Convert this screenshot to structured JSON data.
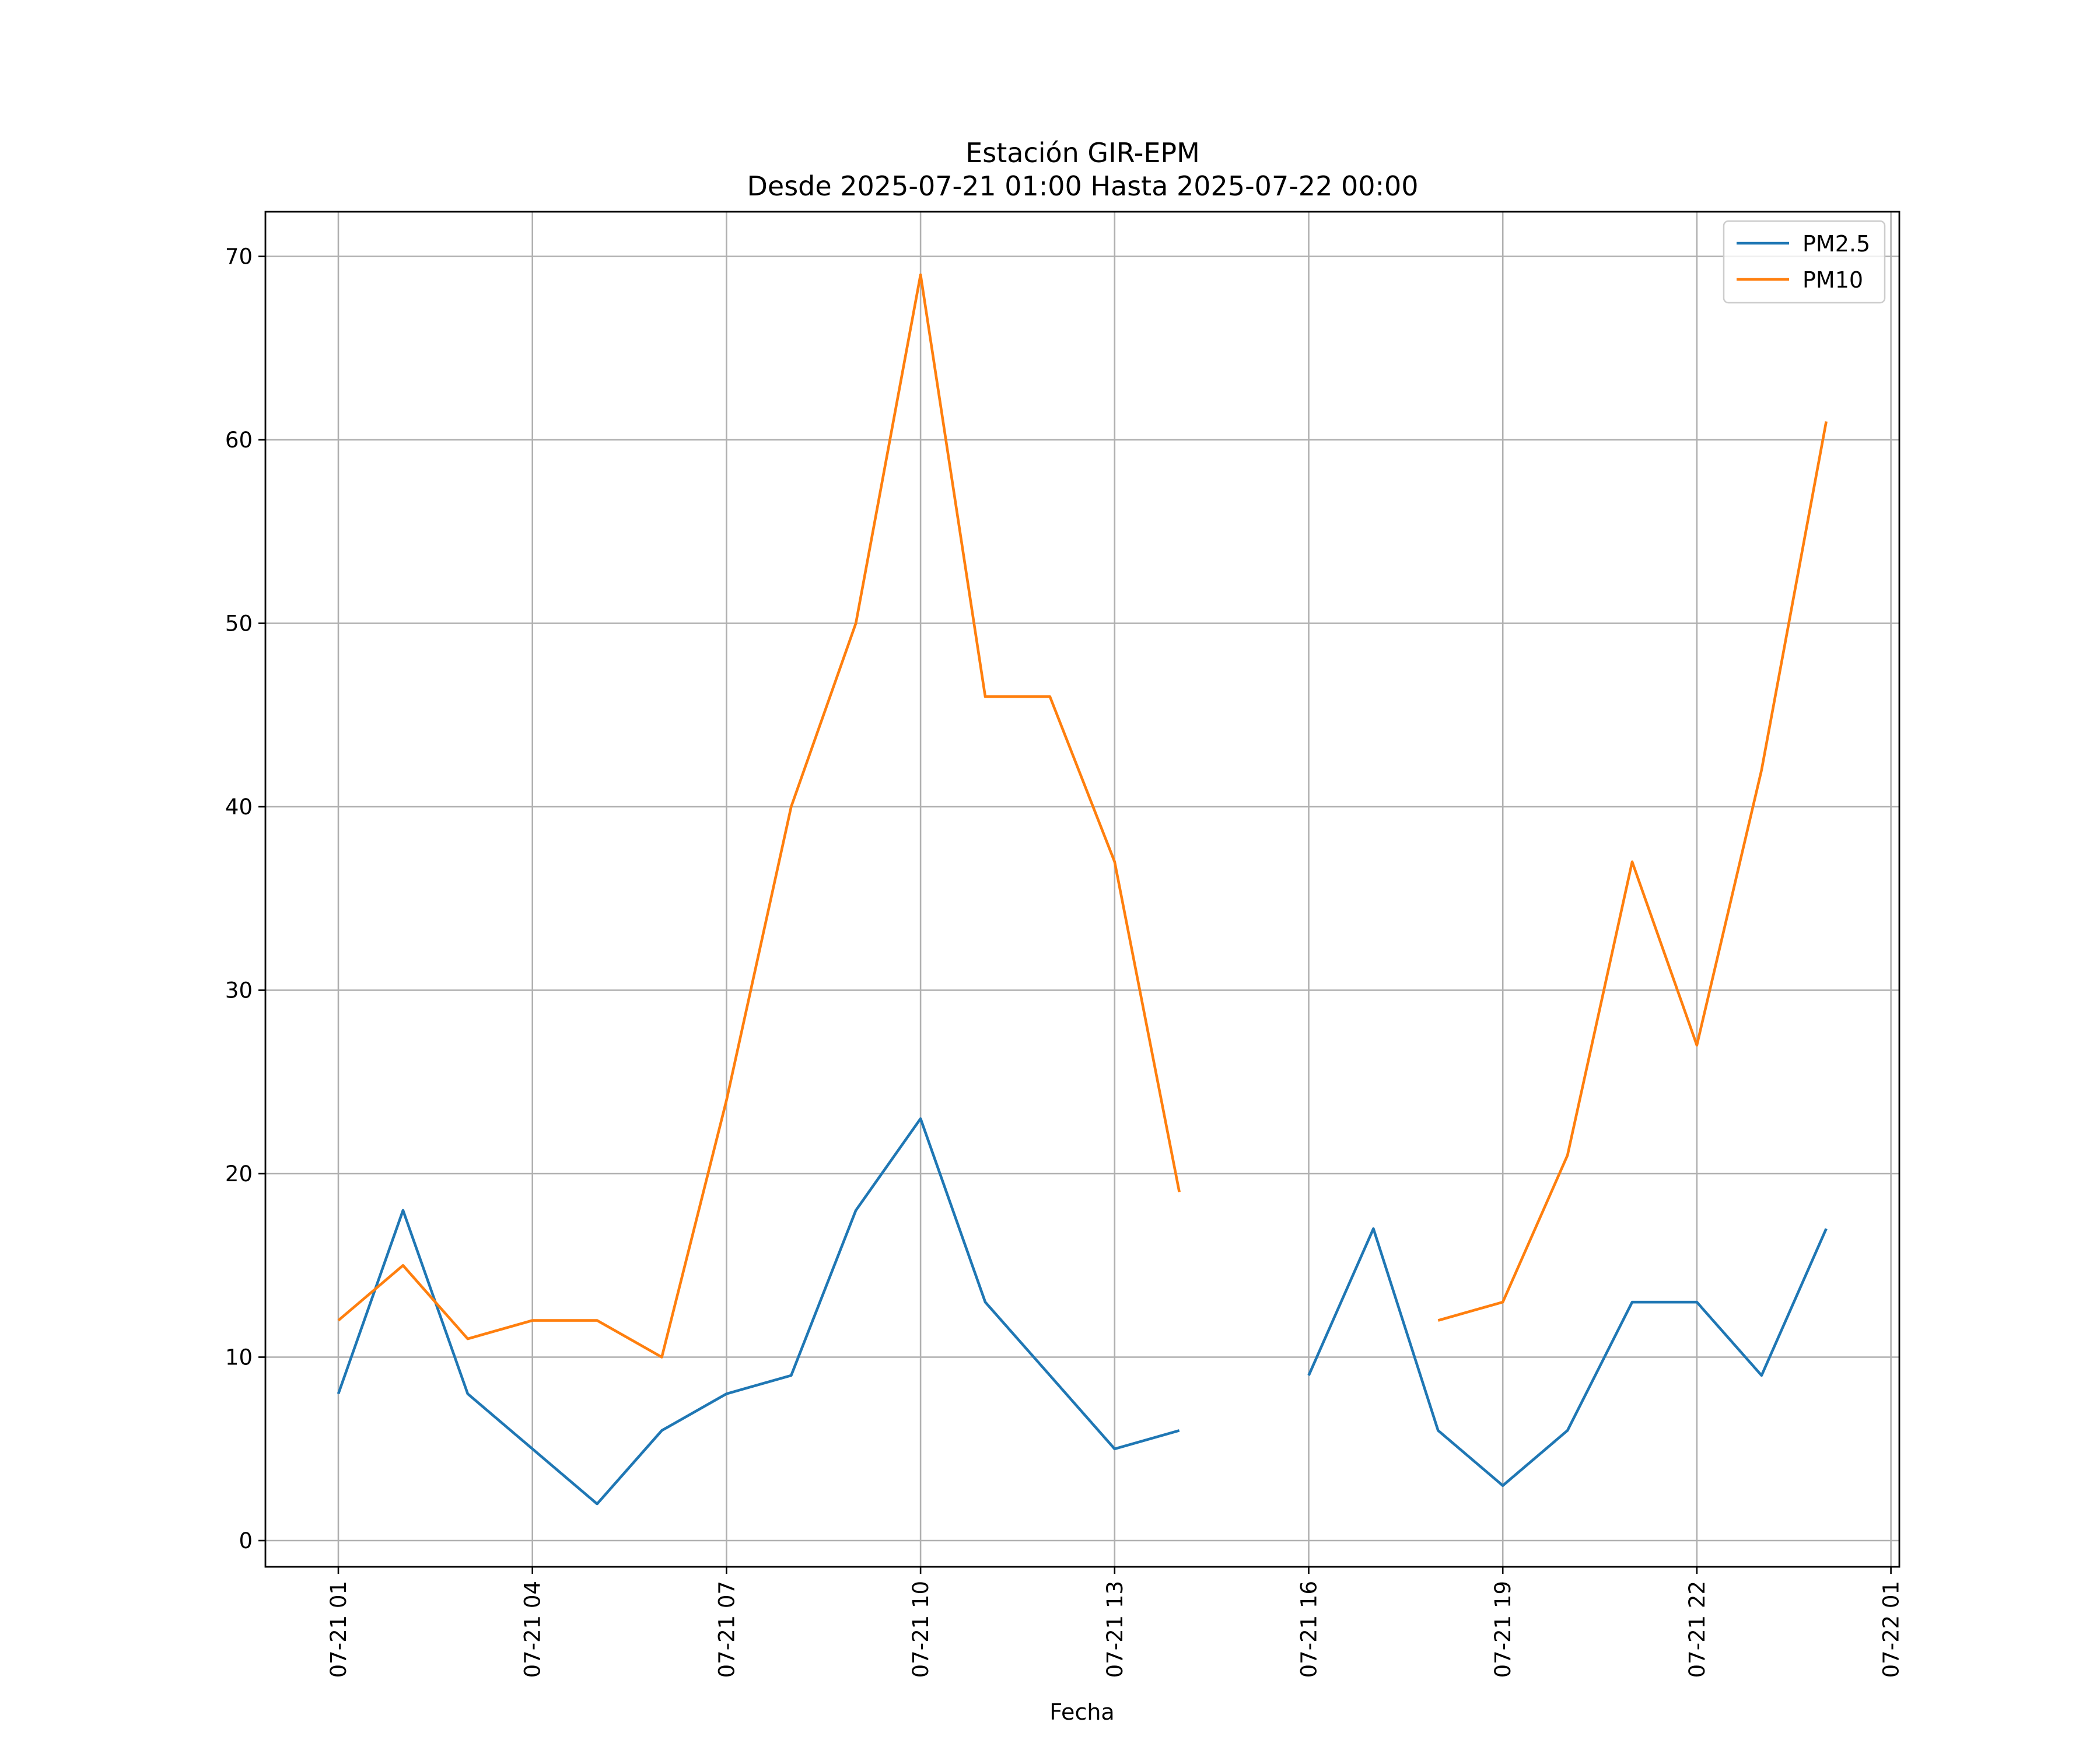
{
  "chart_data": {
    "type": "line",
    "title": "Estación GIR-EPM",
    "subtitle": "Desde 2025-07-21 01:00 Hasta 2025-07-22 00:00",
    "xlabel": "Fecha",
    "ylabel": "",
    "x": [
      "07-21 01:00",
      "07-21 02:00",
      "07-21 03:00",
      "07-21 04:00",
      "07-21 05:00",
      "07-21 06:00",
      "07-21 07:00",
      "07-21 08:00",
      "07-21 09:00",
      "07-21 10:00",
      "07-21 11:00",
      "07-21 12:00",
      "07-21 13:00",
      "07-21 14:00",
      "07-21 15:00",
      "07-21 16:00",
      "07-21 17:00",
      "07-21 18:00",
      "07-21 19:00",
      "07-21 20:00",
      "07-21 21:00",
      "07-21 22:00",
      "07-21 23:00",
      "07-22 00:00"
    ],
    "series": [
      {
        "name": "PM2.5",
        "color": "#1f77b4",
        "values": [
          8,
          18,
          8,
          5,
          2,
          6,
          8,
          9,
          18,
          23,
          13,
          9,
          5,
          6,
          null,
          9,
          17,
          6,
          3,
          6,
          13,
          13,
          9,
          17
        ]
      },
      {
        "name": "PM10",
        "color": "#ff7f0e",
        "values": [
          12,
          15,
          11,
          12,
          12,
          10,
          24,
          40,
          50,
          69,
          46,
          46,
          37,
          19,
          null,
          null,
          null,
          12,
          13,
          21,
          37,
          27,
          42,
          61
        ]
      }
    ],
    "x_ticks": [
      "07-21 01",
      "07-21 04",
      "07-21 07",
      "07-21 10",
      "07-21 13",
      "07-21 16",
      "07-21 19",
      "07-21 22",
      "07-22 01"
    ],
    "y_ticks": [
      "0",
      "10",
      "20",
      "30",
      "40",
      "50",
      "60",
      "70"
    ],
    "ylim": [
      -1.35,
      72.45
    ],
    "xlim": [
      "07-21 -0:09",
      "07-22 01:09"
    ],
    "grid": true,
    "legend_position": "top-right"
  }
}
